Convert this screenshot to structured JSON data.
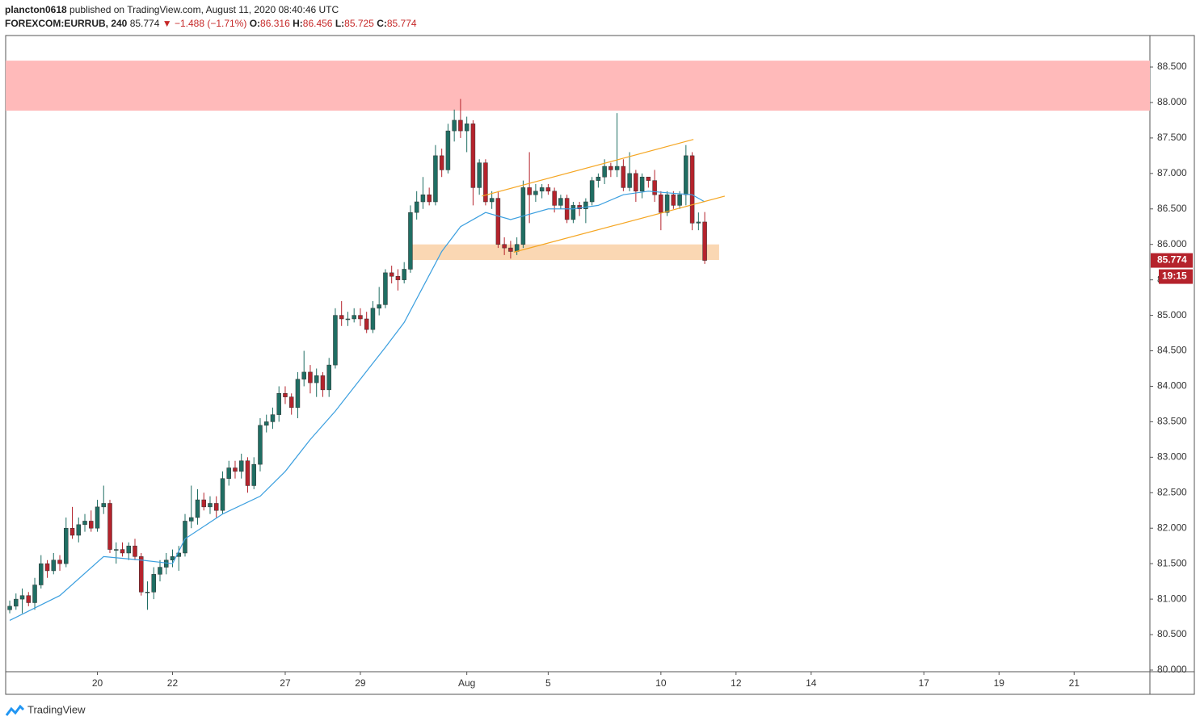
{
  "chart_data": {
    "type": "candlestick",
    "author": "plancton0618",
    "title": "published on TradingView.com, August 11, 2020 08:40:46 UTC",
    "symbol": "FOREXCOM:EURRUB, 240",
    "change_text": "▼ −1.488 (−1.71%)",
    "ohlc_labels": [
      "O:",
      "H:",
      "L:",
      "C:"
    ],
    "countdown": "19:15",
    "brand": "TradingView",
    "up_color": "#1f6e63",
    "down_color": "#b5232c",
    "ma_color": "#3b9fdf",
    "channel_color": "#f5a623",
    "open": [
      80.85,
      80.9,
      81.0,
      81.05,
      80.95,
      81.2,
      81.5,
      81.4,
      81.55,
      81.5,
      82.0,
      81.9,
      82.05,
      82.1,
      82.0,
      82.3,
      82.35,
      81.7,
      81.7,
      81.65,
      81.75,
      81.6,
      81.1,
      81.1,
      81.35,
      81.45,
      81.55,
      81.6,
      81.65,
      82.1,
      82.15,
      82.4,
      82.3,
      82.35,
      82.25,
      82.7,
      82.85,
      82.8,
      82.95,
      82.6,
      82.9,
      83.45,
      83.5,
      83.6,
      83.9,
      83.85,
      83.7,
      84.1,
      84.2,
      84.05,
      84.15,
      83.95,
      84.3,
      85.0,
      84.95,
      84.95,
      85.0,
      84.95,
      84.8,
      85.1,
      85.15,
      85.6,
      85.55,
      85.5,
      85.65,
      86.45,
      86.6,
      86.7,
      86.6,
      87.25,
      87.05,
      87.6,
      87.75,
      87.6,
      87.7,
      86.8,
      87.15,
      86.6,
      86.65,
      86.0,
      85.95,
      85.9,
      86.0,
      86.8,
      86.7,
      86.75,
      86.8,
      86.75,
      86.55,
      86.65,
      86.35,
      86.55,
      86.5,
      86.6,
      86.9,
      86.95,
      87.1,
      87.05,
      87.1,
      86.8,
      87.0,
      86.75,
      86.95,
      86.9,
      86.7,
      86.45,
      86.7,
      86.55,
      86.7,
      87.25,
      86.3,
      86.316
    ],
    "high": [
      80.98,
      81.08,
      81.15,
      81.1,
      81.3,
      81.62,
      81.55,
      81.65,
      81.62,
      82.15,
      82.3,
      82.15,
      82.2,
      82.25,
      82.4,
      82.6,
      82.4,
      81.8,
      81.8,
      81.8,
      81.85,
      81.65,
      81.25,
      81.45,
      81.55,
      81.65,
      81.7,
      81.75,
      82.2,
      82.6,
      82.55,
      82.5,
      82.45,
      82.45,
      82.8,
      82.95,
      82.95,
      83.05,
      83.0,
      83.0,
      83.55,
      83.6,
      83.7,
      84.0,
      84.0,
      83.9,
      84.2,
      84.5,
      84.3,
      84.25,
      84.2,
      84.4,
      85.1,
      85.2,
      85.05,
      85.1,
      85.1,
      85.05,
      85.2,
      85.4,
      85.65,
      85.7,
      85.65,
      85.75,
      86.55,
      86.75,
      86.95,
      86.8,
      87.4,
      87.35,
      87.7,
      87.9,
      88.05,
      87.8,
      87.75,
      87.2,
      87.2,
      86.75,
      86.75,
      86.1,
      86.05,
      86.1,
      86.9,
      87.3,
      86.85,
      86.85,
      86.85,
      86.8,
      86.7,
      86.7,
      86.6,
      86.6,
      86.65,
      86.95,
      87.0,
      87.2,
      87.15,
      87.85,
      87.2,
      87.3,
      87.05,
      87.0,
      86.95,
      87.05,
      86.75,
      86.75,
      86.75,
      86.75,
      87.4,
      87.3,
      86.45,
      86.456
    ],
    "low": [
      80.8,
      80.85,
      80.8,
      80.9,
      80.85,
      81.15,
      81.3,
      81.35,
      81.4,
      81.45,
      81.85,
      81.8,
      81.95,
      81.95,
      81.95,
      82.2,
      81.65,
      81.5,
      81.6,
      81.55,
      81.55,
      81.05,
      80.85,
      81.0,
      81.25,
      81.35,
      81.45,
      81.4,
      81.6,
      82.0,
      82.05,
      82.25,
      82.2,
      82.15,
      82.2,
      82.6,
      82.7,
      82.7,
      82.5,
      82.55,
      82.8,
      83.35,
      83.4,
      83.5,
      83.75,
      83.6,
      83.55,
      84.0,
      83.9,
      83.85,
      83.85,
      83.85,
      84.25,
      84.85,
      84.85,
      84.9,
      84.85,
      84.75,
      84.75,
      85.0,
      85.1,
      85.45,
      85.35,
      85.45,
      85.6,
      86.35,
      86.5,
      86.55,
      86.55,
      86.95,
      87.0,
      87.45,
      87.5,
      87.3,
      86.55,
      86.7,
      86.55,
      86.5,
      85.95,
      85.85,
      85.8,
      85.85,
      85.95,
      86.3,
      86.6,
      86.65,
      86.7,
      86.45,
      86.5,
      86.3,
      86.3,
      86.4,
      86.3,
      86.55,
      86.8,
      86.85,
      86.95,
      86.95,
      86.75,
      86.75,
      86.6,
      86.65,
      86.8,
      86.6,
      86.2,
      86.4,
      86.5,
      86.5,
      86.55,
      86.2,
      86.2,
      85.725
    ],
    "close": [
      80.9,
      81.0,
      81.05,
      80.95,
      81.2,
      81.5,
      81.4,
      81.55,
      81.5,
      82.0,
      81.9,
      82.05,
      82.1,
      82.0,
      82.3,
      82.35,
      81.7,
      81.7,
      81.65,
      81.75,
      81.6,
      81.1,
      81.1,
      81.35,
      81.45,
      81.55,
      81.6,
      81.65,
      82.1,
      82.15,
      82.4,
      82.3,
      82.35,
      82.25,
      82.7,
      82.85,
      82.8,
      82.95,
      82.6,
      82.9,
      83.45,
      83.5,
      83.6,
      83.9,
      83.85,
      83.7,
      84.1,
      84.2,
      84.05,
      84.15,
      83.95,
      84.3,
      85.0,
      84.95,
      84.95,
      85.0,
      84.95,
      84.8,
      85.1,
      85.15,
      85.6,
      85.55,
      85.5,
      85.65,
      86.45,
      86.6,
      86.7,
      86.6,
      87.25,
      87.05,
      87.6,
      87.75,
      87.6,
      87.7,
      86.8,
      87.15,
      86.6,
      86.65,
      86.0,
      85.95,
      85.9,
      86.0,
      86.8,
      86.7,
      86.75,
      86.8,
      86.75,
      86.55,
      86.65,
      86.35,
      86.55,
      86.5,
      86.6,
      86.9,
      86.95,
      87.1,
      87.05,
      87.1,
      86.8,
      87.0,
      86.75,
      86.95,
      86.9,
      86.7,
      86.45,
      86.7,
      86.55,
      86.7,
      87.25,
      86.3,
      86.316,
      85.774
    ],
    "ma": {
      "x": [
        0,
        8,
        15,
        21,
        26,
        28,
        34,
        40,
        44,
        48,
        52,
        56,
        60,
        63,
        66,
        69,
        72,
        76,
        80,
        82,
        86,
        90,
        94,
        98,
        102,
        106,
        109,
        111
      ],
      "values": [
        80.7,
        81.05,
        81.6,
        81.55,
        81.5,
        81.85,
        82.2,
        82.45,
        82.8,
        83.25,
        83.65,
        84.1,
        84.55,
        84.9,
        85.4,
        85.9,
        86.25,
        86.45,
        86.35,
        86.4,
        86.5,
        86.5,
        86.55,
        86.7,
        86.75,
        86.72,
        86.7,
        86.6
      ]
    },
    "zones": [
      {
        "x0": -0.65,
        "x1": 182.1,
        "y0": 87.885,
        "y1": 88.59,
        "color": "#ffbaba"
      },
      {
        "x0": 64.1,
        "x1": 113.3,
        "y0": 85.78,
        "y1": 86.0,
        "color": "#fad7b3"
      }
    ],
    "lines": [
      {
        "x": [
          75.4,
          109.2
        ],
        "y": [
          86.68,
          87.48
        ]
      },
      {
        "x": [
          80.5,
          114.2
        ],
        "y": [
          85.89,
          86.68
        ]
      }
    ],
    "xlim": [
      -0.65,
      182.1
    ],
    "xticks": [
      {
        "value": 14,
        "label": "20"
      },
      {
        "value": 26,
        "label": "22"
      },
      {
        "value": 44,
        "label": "27"
      },
      {
        "value": 56,
        "label": "29"
      },
      {
        "value": 73,
        "label": "Aug"
      },
      {
        "value": 86,
        "label": "5"
      },
      {
        "value": 104,
        "label": "10"
      },
      {
        "value": 116,
        "label": "12"
      },
      {
        "value": 128,
        "label": "14"
      },
      {
        "value": 146,
        "label": "17"
      },
      {
        "value": 158,
        "label": "19"
      },
      {
        "value": 170,
        "label": "21"
      }
    ],
    "ylim": [
      79.977,
      88.944
    ],
    "yticks": [
      {
        "value": 80,
        "label": "80.000"
      },
      {
        "value": 80.5,
        "label": "80.500"
      },
      {
        "value": 81,
        "label": "81.000"
      },
      {
        "value": 81.5,
        "label": "81.500"
      },
      {
        "value": 82,
        "label": "82.000"
      },
      {
        "value": 82.5,
        "label": "82.500"
      },
      {
        "value": 83,
        "label": "83.000"
      },
      {
        "value": 83.5,
        "label": "83.500"
      },
      {
        "value": 84,
        "label": "84.000"
      },
      {
        "value": 84.5,
        "label": "84.500"
      },
      {
        "value": 85,
        "label": "85.000"
      },
      {
        "value": 85.5,
        "label": "85.500"
      },
      {
        "value": 86,
        "label": "86.000"
      },
      {
        "value": 86.5,
        "label": "86.500"
      },
      {
        "value": 87,
        "label": "87.000"
      },
      {
        "value": 87.5,
        "label": "87.500"
      },
      {
        "value": 88,
        "label": "88.000"
      },
      {
        "value": 88.5,
        "label": "88.500"
      }
    ],
    "grid": false
  }
}
